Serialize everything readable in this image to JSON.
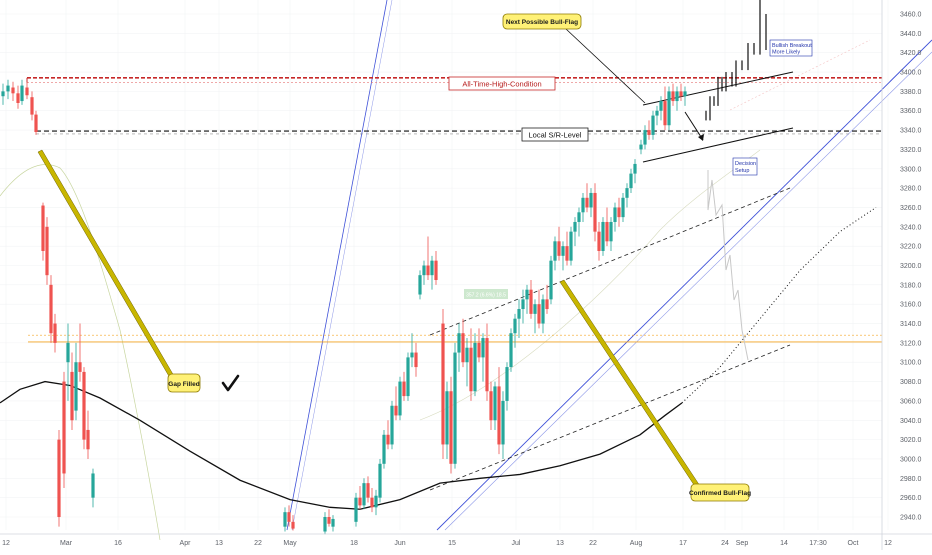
{
  "chart_data": {
    "type": "candlestick",
    "title": "",
    "xlabel": "",
    "ylabel": "",
    "ylim": [
      2922,
      3490
    ],
    "y_ticks": [
      3460,
      3440,
      3420,
      3400,
      3380,
      3360,
      3340,
      3320,
      3300,
      3280,
      3260,
      3240,
      3220,
      3200,
      3180,
      3160,
      3140,
      3120,
      3100,
      3080,
      3060,
      3040,
      3020,
      3000,
      2980,
      2960,
      2940
    ],
    "y_tick_labels": [
      "3460.0",
      "3440.0",
      "3420.0",
      "3400.0",
      "3380.0",
      "3360.0",
      "3340.0",
      "3320.0",
      "3300.0",
      "3280.0",
      "3260.0",
      "3240.0",
      "3220.0",
      "3200.0",
      "3180.0",
      "3160.0",
      "3140.0",
      "3120.0",
      "3100.0",
      "3080.0",
      "3060.0",
      "3040.0",
      "3020.0",
      "3000.0",
      "2980.0",
      "2960.0",
      "2940.0"
    ],
    "x_tick_labels": [
      "12",
      "Mar",
      "16",
      "Apr",
      "13",
      "22",
      "May",
      "18",
      "Jun",
      "15",
      "Jul",
      "13",
      "22",
      "Aug",
      "17",
      "24",
      "Sep",
      "14",
      "17:30",
      "Oct",
      "12"
    ],
    "candles": [
      {
        "x": 3,
        "o": 3375,
        "h": 3388,
        "l": 3366,
        "c": 3380
      },
      {
        "x": 8,
        "o": 3380,
        "h": 3392,
        "l": 3372,
        "c": 3386
      },
      {
        "x": 13,
        "o": 3384,
        "h": 3390,
        "l": 3370,
        "c": 3378
      },
      {
        "x": 18,
        "o": 3378,
        "h": 3386,
        "l": 3362,
        "c": 3368
      },
      {
        "x": 22,
        "o": 3370,
        "h": 3392,
        "l": 3366,
        "c": 3386
      },
      {
        "x": 27,
        "o": 3384,
        "h": 3389,
        "l": 3372,
        "c": 3376
      },
      {
        "x": 32,
        "o": 3374,
        "h": 3380,
        "l": 3350,
        "c": 3356
      },
      {
        "x": 36,
        "o": 3356,
        "h": 3360,
        "l": 3335,
        "c": 3338
      },
      {
        "x": 43,
        "o": 3262,
        "h": 3265,
        "l": 3205,
        "c": 3215
      },
      {
        "x": 47,
        "o": 3240,
        "h": 3250,
        "l": 3180,
        "c": 3190
      },
      {
        "x": 51,
        "o": 3180,
        "h": 3190,
        "l": 3120,
        "c": 3130
      },
      {
        "x": 55,
        "o": 3140,
        "h": 3150,
        "l": 3110,
        "c": 3120
      },
      {
        "x": 59,
        "o": 3020,
        "h": 3030,
        "l": 2930,
        "c": 2940
      },
      {
        "x": 64,
        "o": 3080,
        "h": 3090,
        "l": 2970,
        "c": 2985
      },
      {
        "x": 68,
        "o": 3100,
        "h": 3140,
        "l": 3060,
        "c": 3120
      },
      {
        "x": 72,
        "o": 3090,
        "h": 3110,
        "l": 3030,
        "c": 3040
      },
      {
        "x": 76,
        "o": 3050,
        "h": 3120,
        "l": 3040,
        "c": 3100
      },
      {
        "x": 80,
        "o": 3100,
        "h": 3140,
        "l": 3080,
        "c": 3090
      },
      {
        "x": 84,
        "o": 3090,
        "h": 3095,
        "l": 3010,
        "c": 3020
      },
      {
        "x": 88,
        "o": 3030,
        "h": 3050,
        "l": 3000,
        "c": 3010
      },
      {
        "x": 93,
        "o": 2960,
        "h": 2990,
        "l": 2950,
        "c": 2985
      },
      {
        "x": 285,
        "o": 2930,
        "h": 2950,
        "l": 2925,
        "c": 2945
      },
      {
        "x": 289,
        "o": 2945,
        "h": 2952,
        "l": 2930,
        "c": 2935
      },
      {
        "x": 293,
        "o": 2935,
        "h": 2942,
        "l": 2926,
        "c": 2928
      },
      {
        "x": 325,
        "o": 2925,
        "h": 2945,
        "l": 2922,
        "c": 2940
      },
      {
        "x": 329,
        "o": 2940,
        "h": 2948,
        "l": 2930,
        "c": 2933
      },
      {
        "x": 333,
        "o": 2930,
        "h": 2942,
        "l": 2925,
        "c": 2938
      },
      {
        "x": 356,
        "o": 2935,
        "h": 2965,
        "l": 2930,
        "c": 2960
      },
      {
        "x": 360,
        "o": 2960,
        "h": 2972,
        "l": 2948,
        "c": 2952
      },
      {
        "x": 364,
        "o": 2952,
        "h": 2980,
        "l": 2948,
        "c": 2975
      },
      {
        "x": 368,
        "o": 2975,
        "h": 2982,
        "l": 2955,
        "c": 2960
      },
      {
        "x": 372,
        "o": 2960,
        "h": 2970,
        "l": 2945,
        "c": 2950
      },
      {
        "x": 376,
        "o": 2950,
        "h": 2968,
        "l": 2942,
        "c": 2962
      },
      {
        "x": 380,
        "o": 2960,
        "h": 3000,
        "l": 2955,
        "c": 2995
      },
      {
        "x": 384,
        "o": 2995,
        "h": 3030,
        "l": 2990,
        "c": 3025
      },
      {
        "x": 388,
        "o": 3025,
        "h": 3040,
        "l": 3010,
        "c": 3015
      },
      {
        "x": 392,
        "o": 3015,
        "h": 3060,
        "l": 3010,
        "c": 3055
      },
      {
        "x": 396,
        "o": 3055,
        "h": 3075,
        "l": 3040,
        "c": 3045
      },
      {
        "x": 400,
        "o": 3045,
        "h": 3085,
        "l": 3040,
        "c": 3080
      },
      {
        "x": 404,
        "o": 3080,
        "h": 3090,
        "l": 3060,
        "c": 3065
      },
      {
        "x": 408,
        "o": 3065,
        "h": 3110,
        "l": 3060,
        "c": 3105
      },
      {
        "x": 412,
        "o": 3105,
        "h": 3130,
        "l": 3095,
        "c": 3110
      },
      {
        "x": 416,
        "o": 3110,
        "h": 3120,
        "l": 3085,
        "c": 3095
      },
      {
        "x": 420,
        "o": 3170,
        "h": 3195,
        "l": 3165,
        "c": 3190
      },
      {
        "x": 424,
        "o": 3190,
        "h": 3205,
        "l": 3180,
        "c": 3200
      },
      {
        "x": 428,
        "o": 3200,
        "h": 3230,
        "l": 3185,
        "c": 3190
      },
      {
        "x": 432,
        "o": 3190,
        "h": 3210,
        "l": 3175,
        "c": 3205
      },
      {
        "x": 436,
        "o": 3205,
        "h": 3215,
        "l": 3180,
        "c": 3185
      },
      {
        "x": 443,
        "o": 3140,
        "h": 3155,
        "l": 3000,
        "c": 3015
      },
      {
        "x": 447,
        "o": 3015,
        "h": 3080,
        "l": 3000,
        "c": 3070
      },
      {
        "x": 451,
        "o": 3070,
        "h": 3085,
        "l": 2985,
        "c": 2995
      },
      {
        "x": 455,
        "o": 2995,
        "h": 3120,
        "l": 2990,
        "c": 3110
      },
      {
        "x": 459,
        "o": 3110,
        "h": 3140,
        "l": 3090,
        "c": 3130
      },
      {
        "x": 463,
        "o": 3130,
        "h": 3145,
        "l": 3095,
        "c": 3100
      },
      {
        "x": 467,
        "o": 3100,
        "h": 3125,
        "l": 3075,
        "c": 3115
      },
      {
        "x": 471,
        "o": 3115,
        "h": 3135,
        "l": 3060,
        "c": 3070
      },
      {
        "x": 475,
        "o": 3070,
        "h": 3130,
        "l": 3065,
        "c": 3120
      },
      {
        "x": 479,
        "o": 3120,
        "h": 3135,
        "l": 3100,
        "c": 3105
      },
      {
        "x": 483,
        "o": 3105,
        "h": 3130,
        "l": 3080,
        "c": 3125
      },
      {
        "x": 487,
        "o": 3125,
        "h": 3140,
        "l": 3060,
        "c": 3070
      },
      {
        "x": 491,
        "o": 3070,
        "h": 3080,
        "l": 3030,
        "c": 3040
      },
      {
        "x": 495,
        "o": 3040,
        "h": 3080,
        "l": 3030,
        "c": 3075
      },
      {
        "x": 499,
        "o": 3075,
        "h": 3095,
        "l": 3005,
        "c": 3015
      },
      {
        "x": 503,
        "o": 3015,
        "h": 3070,
        "l": 3000,
        "c": 3060
      },
      {
        "x": 507,
        "o": 3060,
        "h": 3100,
        "l": 3050,
        "c": 3095
      },
      {
        "x": 511,
        "o": 3095,
        "h": 3135,
        "l": 3090,
        "c": 3130
      },
      {
        "x": 515,
        "o": 3130,
        "h": 3150,
        "l": 3115,
        "c": 3145
      },
      {
        "x": 519,
        "o": 3145,
        "h": 3165,
        "l": 3125,
        "c": 3155
      },
      {
        "x": 523,
        "o": 3155,
        "h": 3175,
        "l": 3140,
        "c": 3165
      },
      {
        "x": 527,
        "o": 3165,
        "h": 3180,
        "l": 3150,
        "c": 3175
      },
      {
        "x": 531,
        "o": 3175,
        "h": 3185,
        "l": 3145,
        "c": 3150
      },
      {
        "x": 535,
        "o": 3150,
        "h": 3165,
        "l": 3130,
        "c": 3160
      },
      {
        "x": 539,
        "o": 3160,
        "h": 3175,
        "l": 3135,
        "c": 3140
      },
      {
        "x": 543,
        "o": 3140,
        "h": 3170,
        "l": 3130,
        "c": 3165
      },
      {
        "x": 547,
        "o": 3165,
        "h": 3180,
        "l": 3150,
        "c": 3155
      },
      {
        "x": 551,
        "o": 3165,
        "h": 3210,
        "l": 3160,
        "c": 3205
      },
      {
        "x": 555,
        "o": 3205,
        "h": 3230,
        "l": 3195,
        "c": 3225
      },
      {
        "x": 559,
        "o": 3225,
        "h": 3240,
        "l": 3205,
        "c": 3210
      },
      {
        "x": 563,
        "o": 3210,
        "h": 3225,
        "l": 3195,
        "c": 3220
      },
      {
        "x": 567,
        "o": 3220,
        "h": 3235,
        "l": 3200,
        "c": 3205
      },
      {
        "x": 571,
        "o": 3205,
        "h": 3240,
        "l": 3200,
        "c": 3235
      },
      {
        "x": 575,
        "o": 3235,
        "h": 3250,
        "l": 3220,
        "c": 3245
      },
      {
        "x": 579,
        "o": 3245,
        "h": 3260,
        "l": 3230,
        "c": 3255
      },
      {
        "x": 583,
        "o": 3255,
        "h": 3275,
        "l": 3245,
        "c": 3270
      },
      {
        "x": 587,
        "o": 3270,
        "h": 3285,
        "l": 3255,
        "c": 3260
      },
      {
        "x": 591,
        "o": 3260,
        "h": 3280,
        "l": 3250,
        "c": 3275
      },
      {
        "x": 595,
        "o": 3275,
        "h": 3285,
        "l": 3225,
        "c": 3235
      },
      {
        "x": 599,
        "o": 3235,
        "h": 3245,
        "l": 3205,
        "c": 3215
      },
      {
        "x": 603,
        "o": 3215,
        "h": 3250,
        "l": 3210,
        "c": 3245
      },
      {
        "x": 607,
        "o": 3245,
        "h": 3260,
        "l": 3220,
        "c": 3225
      },
      {
        "x": 611,
        "o": 3225,
        "h": 3250,
        "l": 3215,
        "c": 3245
      },
      {
        "x": 615,
        "o": 3245,
        "h": 3265,
        "l": 3235,
        "c": 3260
      },
      {
        "x": 619,
        "o": 3260,
        "h": 3270,
        "l": 3240,
        "c": 3250
      },
      {
        "x": 623,
        "o": 3250,
        "h": 3275,
        "l": 3245,
        "c": 3270
      },
      {
        "x": 627,
        "o": 3270,
        "h": 3285,
        "l": 3260,
        "c": 3280
      },
      {
        "x": 631,
        "o": 3280,
        "h": 3300,
        "l": 3275,
        "c": 3295
      },
      {
        "x": 635,
        "o": 3295,
        "h": 3310,
        "l": 3285,
        "c": 3305
      },
      {
        "x": 641,
        "o": 3320,
        "h": 3330,
        "l": 3315,
        "c": 3325
      },
      {
        "x": 645,
        "o": 3325,
        "h": 3345,
        "l": 3320,
        "c": 3340
      },
      {
        "x": 649,
        "o": 3340,
        "h": 3350,
        "l": 3330,
        "c": 3335
      },
      {
        "x": 653,
        "o": 3335,
        "h": 3360,
        "l": 3330,
        "c": 3355
      },
      {
        "x": 657,
        "o": 3355,
        "h": 3365,
        "l": 3345,
        "c": 3360
      },
      {
        "x": 661,
        "o": 3360,
        "h": 3375,
        "l": 3350,
        "c": 3370
      },
      {
        "x": 665,
        "o": 3370,
        "h": 3385,
        "l": 3340,
        "c": 3345
      },
      {
        "x": 669,
        "o": 3345,
        "h": 3385,
        "l": 3340,
        "c": 3380
      },
      {
        "x": 673,
        "o": 3380,
        "h": 3388,
        "l": 3365,
        "c": 3370
      },
      {
        "x": 677,
        "o": 3370,
        "h": 3385,
        "l": 3360,
        "c": 3380
      },
      {
        "x": 681,
        "o": 3380,
        "h": 3388,
        "l": 3370,
        "c": 3375
      },
      {
        "x": 685,
        "o": 3375,
        "h": 3385,
        "l": 3365,
        "c": 3380
      }
    ],
    "projection_path": [
      [
        706,
        3360
      ],
      [
        710,
        3350
      ],
      [
        714,
        3375
      ],
      [
        718,
        3365
      ],
      [
        722,
        3395
      ],
      [
        726,
        3380
      ],
      [
        732,
        3400
      ],
      [
        736,
        3385
      ],
      [
        742,
        3412
      ],
      [
        748,
        3402
      ],
      [
        754,
        3430
      ],
      [
        760,
        3418
      ],
      [
        766,
        3478
      ]
    ],
    "moving_average": [
      [
        0,
        3058
      ],
      [
        20,
        3072
      ],
      [
        45,
        3080
      ],
      [
        70,
        3076
      ],
      [
        100,
        3063
      ],
      [
        140,
        3040
      ],
      [
        190,
        3008
      ],
      [
        240,
        2978
      ],
      [
        290,
        2958
      ],
      [
        330,
        2950
      ],
      [
        360,
        2948
      ],
      [
        400,
        2958
      ],
      [
        440,
        2975
      ],
      [
        480,
        2980
      ],
      [
        520,
        2984
      ],
      [
        560,
        2993
      ],
      [
        600,
        3005
      ],
      [
        640,
        3025
      ],
      [
        665,
        3045
      ],
      [
        682,
        3058
      ]
    ],
    "moving_average_extension": [
      [
        682,
        3058
      ],
      [
        720,
        3095
      ],
      [
        760,
        3145
      ],
      [
        800,
        3195
      ],
      [
        840,
        3235
      ],
      [
        876,
        3260
      ]
    ],
    "horizontal_levels": [
      {
        "name": "all-time-high-level",
        "y": 3392,
        "style": "red-dashed"
      },
      {
        "name": "local-sr-level",
        "y": 3337,
        "style": "black-dashed"
      },
      {
        "name": "orange-level",
        "y": 3124,
        "style": "orange-dotted"
      }
    ],
    "annotations": [
      {
        "name": "all-time-high-label",
        "text": "All-Time-High-Condition"
      },
      {
        "name": "local-sr-label",
        "text": "Local S/R-Level"
      },
      {
        "name": "next-bull-flag-callout",
        "text": "Next Possible Bull-Flag"
      },
      {
        "name": "gap-filled-callout",
        "text": "Gap Filled"
      },
      {
        "name": "confirmed-bull-flag-callout",
        "text": "Confirmed Bull-Flag"
      },
      {
        "name": "bullish-breakout-note",
        "lines": [
          "Bullish Breakout",
          "More Likely"
        ]
      },
      {
        "name": "decision-setup-note",
        "lines": [
          "Decision",
          "Setup"
        ]
      },
      {
        "name": "price-measure-label",
        "text": "357.2 (6.6%) 18.5"
      }
    ],
    "colors": {
      "up": "#26a69a",
      "down": "#ef5350",
      "ath": "#c62828",
      "ma": "#111111",
      "blue": "#3f51d8",
      "orange": "#f5a623",
      "callout_fill": "#fff176",
      "callout_border": "#8d7a00",
      "note_blue": "#2233aa",
      "grid": "#f2f3f5",
      "axis_text": "#5d6168"
    }
  }
}
